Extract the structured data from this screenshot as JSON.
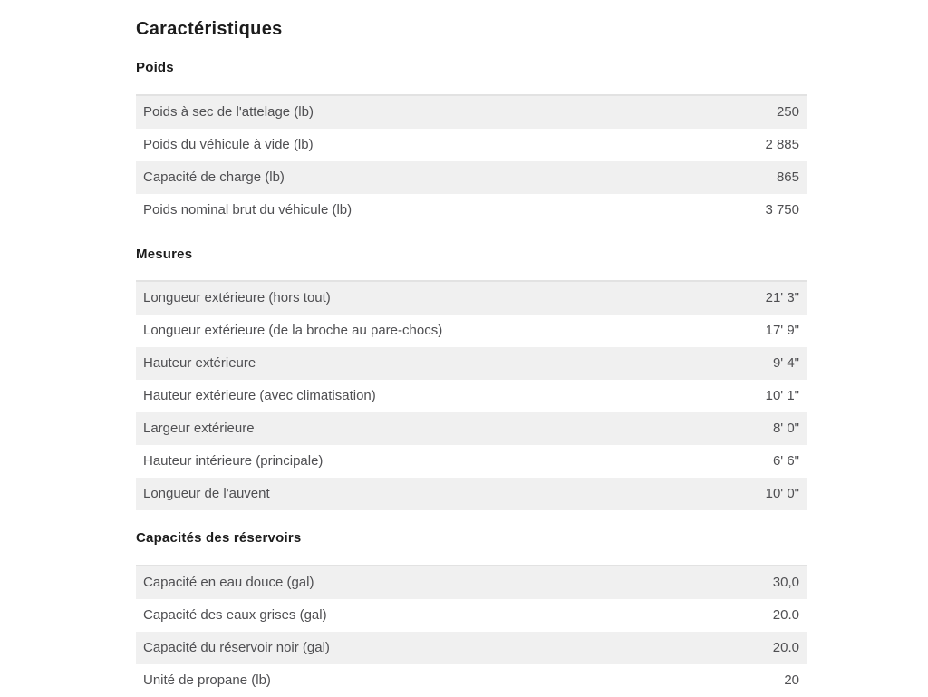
{
  "page": {
    "title": "Caractéristiques"
  },
  "sections": [
    {
      "heading": "Poids",
      "rows": [
        {
          "label": "Poids à sec de l'attelage (lb)",
          "value": "250"
        },
        {
          "label": "Poids du véhicule à vide (lb)",
          "value": "2 885"
        },
        {
          "label": "Capacité de charge (lb)",
          "value": "865"
        },
        {
          "label": "Poids nominal brut du véhicule (lb)",
          "value": "3 750"
        }
      ]
    },
    {
      "heading": "Mesures",
      "rows": [
        {
          "label": "Longueur extérieure (hors tout)",
          "value": "21' 3\""
        },
        {
          "label": "Longueur extérieure (de la broche au pare-chocs)",
          "value": "17' 9\""
        },
        {
          "label": "Hauteur extérieure",
          "value": "9' 4\""
        },
        {
          "label": "Hauteur extérieure (avec climatisation)",
          "value": "10' 1\""
        },
        {
          "label": "Largeur extérieure",
          "value": "8' 0\""
        },
        {
          "label": "Hauteur intérieure (principale)",
          "value": "6' 6\""
        },
        {
          "label": "Longueur de l'auvent",
          "value": "10' 0\""
        }
      ]
    },
    {
      "heading": "Capacités des réservoirs",
      "rows": [
        {
          "label": "Capacité en eau douce (gal)",
          "value": "30,0"
        },
        {
          "label": "Capacité des eaux grises (gal)",
          "value": "20.0"
        },
        {
          "label": "Capacité du réservoir noir (gal)",
          "value": "20.0"
        },
        {
          "label": "Unité de propane (lb)",
          "value": "20"
        }
      ]
    }
  ],
  "colors": {
    "row_alt_bg": "#f0f0f0",
    "table_top_border": "#e2e2e2",
    "body_text": "#4f4f52",
    "heading_text": "#1c1c1c"
  }
}
